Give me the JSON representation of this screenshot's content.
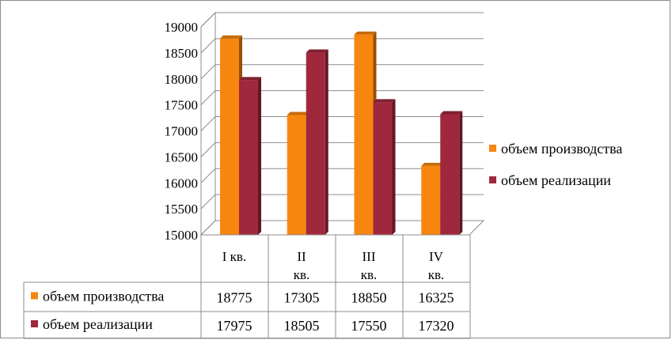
{
  "chart_data": {
    "type": "bar",
    "categories": [
      {
        "line1": "I кв.",
        "line2": ""
      },
      {
        "line1": "II",
        "line2": "кв."
      },
      {
        "line1": "III",
        "line2": "кв."
      },
      {
        "line1": "IV",
        "line2": "кв."
      }
    ],
    "series": [
      {
        "name": "объем производства",
        "values": [
          18775,
          17305,
          18850,
          16325
        ],
        "color": "#f7860f"
      },
      {
        "name": "объем реализации",
        "values": [
          17975,
          18505,
          17550,
          17320
        ],
        "color": "#a0283c"
      }
    ],
    "ylim": [
      15000,
      19000
    ],
    "yticks": [
      "15000",
      "15500",
      "16000",
      "16500",
      "17000",
      "17500",
      "18000",
      "18500",
      "19000"
    ],
    "table_values": [
      [
        "18775",
        "17305",
        "18850",
        "16325"
      ],
      [
        "17975",
        "18505",
        "17550",
        "17320"
      ]
    ],
    "grid": true,
    "legend": "right",
    "data_table": true
  }
}
